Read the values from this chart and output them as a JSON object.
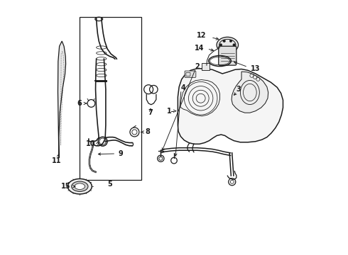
{
  "bg_color": "#ffffff",
  "line_color": "#1a1a1a",
  "gray_color": "#888888",
  "light_gray": "#cccccc",
  "figsize": [
    4.9,
    3.6
  ],
  "dpi": 100,
  "labels": {
    "1": [
      0.497,
      0.495,
      0.515,
      0.495
    ],
    "2": [
      0.6,
      0.715,
      0.6,
      0.738
    ],
    "3": [
      0.75,
      0.64,
      0.75,
      0.618
    ],
    "4": [
      0.66,
      0.648,
      0.66,
      0.67
    ],
    "5": [
      0.245,
      0.278,
      0.245,
      0.3
    ],
    "6": [
      0.138,
      0.595,
      0.165,
      0.595
    ],
    "7": [
      0.39,
      0.558,
      0.39,
      0.59
    ],
    "8": [
      0.378,
      0.48,
      0.353,
      0.48
    ],
    "9": [
      0.278,
      0.397,
      0.248,
      0.415
    ],
    "10": [
      0.195,
      0.435,
      0.222,
      0.435
    ],
    "11": [
      0.04,
      0.368,
      0.04,
      0.408
    ],
    "12": [
      0.62,
      0.862,
      0.635,
      0.832
    ],
    "13": [
      0.8,
      0.732,
      0.77,
      0.732
    ],
    "14": [
      0.62,
      0.818,
      0.645,
      0.808
    ],
    "15": [
      0.1,
      0.275,
      0.128,
      0.275
    ]
  }
}
